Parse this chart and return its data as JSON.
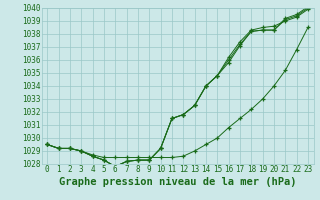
{
  "title": "Graphe pression niveau de la mer (hPa)",
  "hours": [
    0,
    1,
    2,
    3,
    4,
    5,
    6,
    7,
    8,
    9,
    10,
    11,
    12,
    13,
    14,
    15,
    16,
    17,
    18,
    19,
    20,
    21,
    22,
    23
  ],
  "series": [
    [
      1029.5,
      1029.2,
      1029.2,
      1029.0,
      1028.6,
      1028.3,
      1027.8,
      1028.2,
      1028.3,
      1028.3,
      1029.2,
      1031.5,
      1031.8,
      1032.5,
      1034.0,
      1034.8,
      1035.8,
      1037.1,
      1038.2,
      1038.3,
      1038.3,
      1039.2,
      1039.5,
      1040.1
    ],
    [
      1029.5,
      1029.2,
      1029.2,
      1029.0,
      1028.6,
      1028.3,
      1027.8,
      1028.2,
      1028.3,
      1028.3,
      1029.2,
      1031.5,
      1031.8,
      1032.5,
      1034.0,
      1034.8,
      1036.2,
      1037.4,
      1038.3,
      1038.5,
      1038.6,
      1039.0,
      1039.3,
      1039.9
    ],
    [
      1029.5,
      1029.2,
      1029.2,
      1029.0,
      1028.6,
      1028.3,
      1027.8,
      1028.2,
      1028.3,
      1028.3,
      1029.2,
      1031.5,
      1031.8,
      1032.5,
      1034.0,
      1034.8,
      1036.0,
      1037.2,
      1038.2,
      1038.3,
      1038.3,
      1039.1,
      1039.4,
      1040.0
    ],
    [
      1029.5,
      1029.2,
      1029.2,
      1029.0,
      1028.7,
      1028.5,
      1028.5,
      1028.5,
      1028.5,
      1028.5,
      1028.5,
      1028.5,
      1028.6,
      1029.0,
      1029.5,
      1030.0,
      1030.8,
      1031.5,
      1032.2,
      1033.0,
      1034.0,
      1035.2,
      1036.8,
      1038.5
    ]
  ],
  "line_color": "#1a6b1a",
  "bg_color": "#cce8e8",
  "grid_color": "#9ac8c8",
  "ylim_min": 1028,
  "ylim_max": 1040,
  "tick_fontsize": 5.5,
  "title_fontsize": 7.5
}
